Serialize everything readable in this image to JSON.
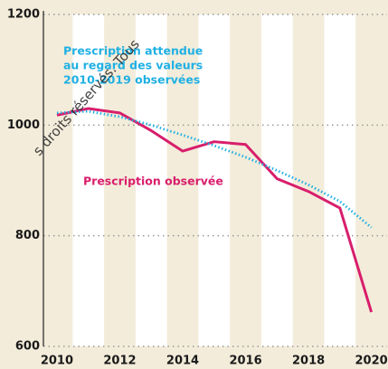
{
  "chart_data": {
    "type": "line",
    "x": [
      2010,
      2011,
      2012,
      2013,
      2014,
      2015,
      2016,
      2017,
      2018,
      2019,
      2020
    ],
    "series": [
      {
        "name": "Prescription observée",
        "color": "#d81e6c",
        "style": "solid",
        "values": [
          1018,
          1030,
          1022,
          990,
          953,
          970,
          965,
          903,
          880,
          850,
          662
        ]
      },
      {
        "name": "Prescription attendue au regard des valeurs 2010-2019 observées",
        "color": "#1fb0e4",
        "style": "dotted",
        "values": [
          1022,
          1025,
          1015,
          1000,
          982,
          963,
          942,
          918,
          892,
          862,
          815
        ]
      }
    ],
    "annotations": [
      "Prescription attendue",
      "au regard des valeurs",
      "2010-2019 observées",
      "Prescription observée"
    ],
    "watermark": "s droits réservés. Tous",
    "xlim": [
      2009.57,
      2020.5
    ],
    "xticks": [
      2010,
      2012,
      2014,
      2016,
      2018,
      2020
    ],
    "ylim": [
      600,
      1200
    ],
    "yticks": [
      600,
      800,
      1000,
      1200
    ],
    "grid": true
  }
}
